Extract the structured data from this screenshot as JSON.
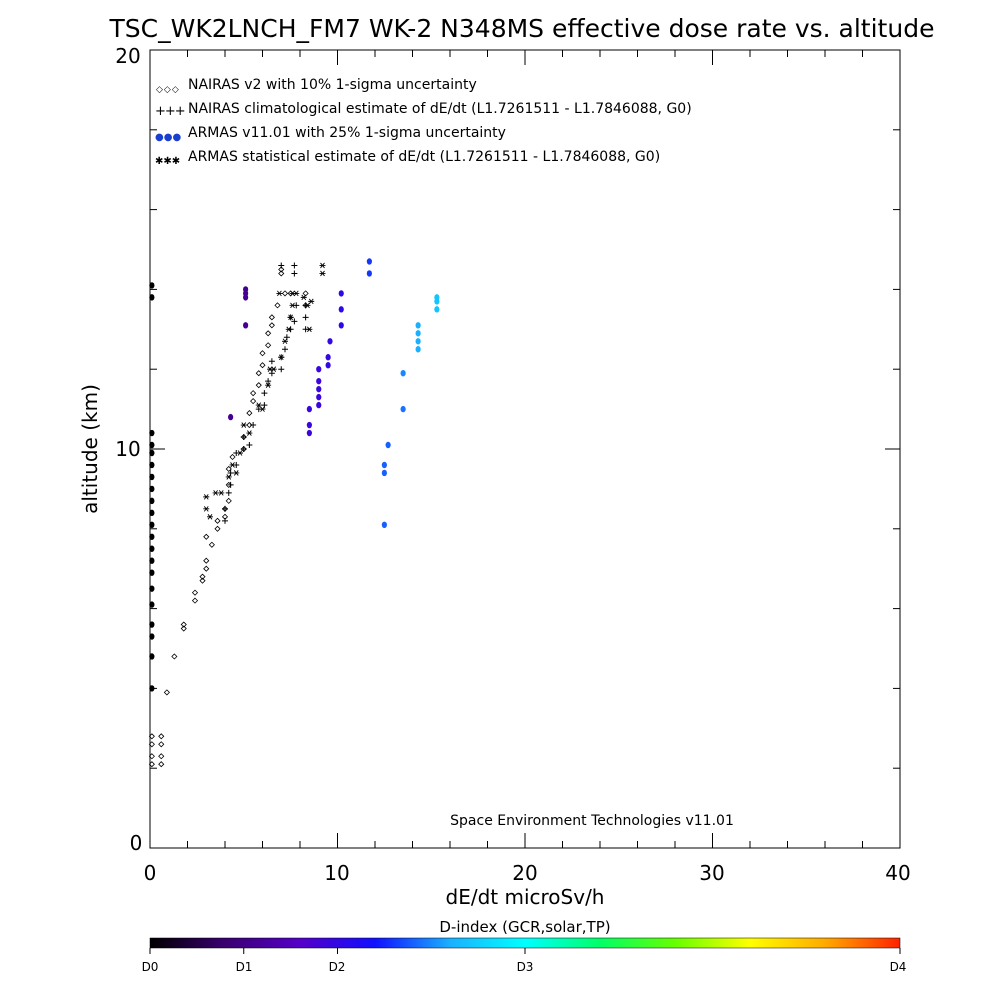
{
  "chart_data": {
    "type": "scatter",
    "title": "TSC_WK2LNCH_FM7 WK-2 N348MS effective dose rate vs. altitude",
    "xlabel": "dE/dt microSv/h",
    "ylabel": "altitude (km)",
    "xlim": [
      0,
      40
    ],
    "ylim": [
      0,
      20
    ],
    "xticks": [
      "0",
      "10",
      "20",
      "30",
      "40"
    ],
    "yticks": [
      "0",
      "10",
      "20"
    ],
    "annotation": "Space Environment Technologies v11.01",
    "legend": {
      "placement": "top-left",
      "entries": [
        {
          "symbol": "◇◇◇",
          "label": "NAIRAS v2 with 10% 1-sigma uncertainty"
        },
        {
          "symbol": "+++",
          "label": "NAIRAS climatological estimate of dE/dt (L1.7261511 - L1.7846088, G0)"
        },
        {
          "symbol": "●●●",
          "label": "ARMAS v11.01 with 25% 1-sigma uncertainty",
          "color": "#1a3fd0"
        },
        {
          "symbol": "✱✱✱",
          "label": "ARMAS statistical estimate of dE/dt (L1.7261511 - L1.7846088, G0)"
        }
      ]
    },
    "series": [
      {
        "name": "NAIRAS v2 with 10% 1-sigma uncertainty",
        "marker": "diamond",
        "points": [
          [
            0.1,
            2.1
          ],
          [
            0.6,
            2.1
          ],
          [
            0.1,
            2.3
          ],
          [
            0.6,
            2.3
          ],
          [
            0.1,
            2.6
          ],
          [
            0.6,
            2.6
          ],
          [
            0.1,
            2.8
          ],
          [
            0.6,
            2.8
          ],
          [
            0.9,
            3.9
          ],
          [
            1.3,
            4.8
          ],
          [
            1.8,
            5.5
          ],
          [
            1.8,
            5.6
          ],
          [
            2.4,
            6.2
          ],
          [
            2.4,
            6.4
          ],
          [
            2.8,
            6.7
          ],
          [
            2.8,
            6.8
          ],
          [
            3.0,
            7.0
          ],
          [
            3.0,
            7.2
          ],
          [
            3.3,
            7.6
          ],
          [
            3.0,
            7.8
          ],
          [
            3.6,
            8.0
          ],
          [
            3.6,
            8.2
          ],
          [
            4.0,
            8.3
          ],
          [
            4.0,
            8.5
          ],
          [
            4.2,
            8.7
          ],
          [
            4.2,
            9.1
          ],
          [
            4.2,
            9.5
          ],
          [
            4.4,
            9.8
          ],
          [
            5.0,
            10.0
          ],
          [
            5.0,
            10.3
          ],
          [
            5.3,
            10.6
          ],
          [
            5.3,
            10.9
          ],
          [
            5.5,
            11.2
          ],
          [
            5.5,
            11.4
          ],
          [
            5.8,
            11.6
          ],
          [
            5.8,
            11.9
          ],
          [
            6.0,
            12.1
          ],
          [
            6.0,
            12.4
          ],
          [
            6.3,
            12.6
          ],
          [
            6.3,
            12.9
          ],
          [
            6.5,
            13.1
          ],
          [
            6.5,
            13.3
          ],
          [
            6.8,
            13.6
          ],
          [
            7.2,
            13.9
          ],
          [
            7.5,
            13.9
          ],
          [
            8.3,
            13.9
          ],
          [
            8.3,
            13.6
          ],
          [
            7.0,
            14.5
          ],
          [
            7.0,
            14.4
          ]
        ]
      },
      {
        "name": "NAIRAS climatological estimate of dE/dt (L1.7261511 - L1.7846088, G0)",
        "marker": "plus",
        "points": [
          [
            4.0,
            8.2
          ],
          [
            4.0,
            8.5
          ],
          [
            4.2,
            8.9
          ],
          [
            4.3,
            9.1
          ],
          [
            4.3,
            9.4
          ],
          [
            4.6,
            9.6
          ],
          [
            4.6,
            9.9
          ],
          [
            5.0,
            10.0
          ],
          [
            5.0,
            10.3
          ],
          [
            5.3,
            10.1
          ],
          [
            5.5,
            10.6
          ],
          [
            5.8,
            11.0
          ],
          [
            6.1,
            11.1
          ],
          [
            6.1,
            11.4
          ],
          [
            6.3,
            11.7
          ],
          [
            6.5,
            11.9
          ],
          [
            6.5,
            12.2
          ],
          [
            7.0,
            12.0
          ],
          [
            7.0,
            12.3
          ],
          [
            7.2,
            12.5
          ],
          [
            7.3,
            12.8
          ],
          [
            7.5,
            13.0
          ],
          [
            7.5,
            13.3
          ],
          [
            7.7,
            13.2
          ],
          [
            7.8,
            13.6
          ],
          [
            8.3,
            13.0
          ],
          [
            8.3,
            13.3
          ],
          [
            8.3,
            13.6
          ],
          [
            7.0,
            14.6
          ],
          [
            7.7,
            14.6
          ],
          [
            7.7,
            14.4
          ]
        ]
      },
      {
        "name": "ARMAS statistical estimate of dE/dt (L1.7261511 - L1.7846088, G0)",
        "marker": "asterisk",
        "points": [
          [
            3.0,
            8.5
          ],
          [
            3.0,
            8.8
          ],
          [
            3.2,
            8.3
          ],
          [
            3.5,
            8.9
          ],
          [
            3.8,
            8.9
          ],
          [
            4.2,
            9.3
          ],
          [
            4.4,
            9.6
          ],
          [
            4.6,
            9.4
          ],
          [
            4.8,
            9.9
          ],
          [
            5.3,
            10.4
          ],
          [
            5.0,
            10.6
          ],
          [
            5.8,
            11.1
          ],
          [
            6.0,
            11.0
          ],
          [
            6.3,
            11.6
          ],
          [
            6.4,
            12.0
          ],
          [
            6.6,
            12.0
          ],
          [
            7.0,
            12.3
          ],
          [
            7.2,
            12.7
          ],
          [
            7.4,
            13.0
          ],
          [
            7.5,
            13.3
          ],
          [
            7.6,
            13.6
          ],
          [
            7.8,
            13.9
          ],
          [
            8.2,
            13.8
          ],
          [
            8.4,
            13.6
          ],
          [
            8.6,
            13.7
          ],
          [
            8.5,
            13.0
          ],
          [
            6.9,
            13.9
          ],
          [
            7.6,
            13.9
          ],
          [
            9.2,
            14.6
          ],
          [
            9.2,
            14.4
          ]
        ]
      },
      {
        "name": "ARMAS v11.01 with 25% 1-sigma uncertainty",
        "marker": "filled-circle",
        "points": [
          {
            "x": 0.1,
            "y": 4.0,
            "d": 0
          },
          {
            "x": 0.1,
            "y": 4.8,
            "d": 0
          },
          {
            "x": 0.1,
            "y": 5.3,
            "d": 0
          },
          {
            "x": 0.1,
            "y": 5.6,
            "d": 0
          },
          {
            "x": 0.1,
            "y": 6.1,
            "d": 0
          },
          {
            "x": 0.1,
            "y": 6.5,
            "d": 0
          },
          {
            "x": 0.1,
            "y": 6.9,
            "d": 0
          },
          {
            "x": 0.1,
            "y": 7.2,
            "d": 0
          },
          {
            "x": 0.1,
            "y": 7.5,
            "d": 0
          },
          {
            "x": 0.1,
            "y": 7.8,
            "d": 0
          },
          {
            "x": 0.1,
            "y": 8.1,
            "d": 0
          },
          {
            "x": 0.1,
            "y": 8.4,
            "d": 0
          },
          {
            "x": 0.1,
            "y": 8.7,
            "d": 0
          },
          {
            "x": 0.1,
            "y": 9.0,
            "d": 0
          },
          {
            "x": 0.1,
            "y": 9.3,
            "d": 0
          },
          {
            "x": 0.1,
            "y": 9.6,
            "d": 0
          },
          {
            "x": 0.1,
            "y": 9.9,
            "d": 0
          },
          {
            "x": 0.1,
            "y": 10.1,
            "d": 0
          },
          {
            "x": 0.1,
            "y": 10.4,
            "d": 0
          },
          {
            "x": 0.1,
            "y": 13.8,
            "d": 0
          },
          {
            "x": 0.1,
            "y": 14.1,
            "d": 0
          },
          {
            "x": 4.3,
            "y": 10.8,
            "d": 1.1
          },
          {
            "x": 5.1,
            "y": 13.1,
            "d": 1.1
          },
          {
            "x": 5.1,
            "y": 13.8,
            "d": 1.1
          },
          {
            "x": 5.1,
            "y": 13.9,
            "d": 1.1
          },
          {
            "x": 5.1,
            "y": 14.0,
            "d": 1.1
          },
          {
            "x": 8.5,
            "y": 10.4,
            "d": 1.9
          },
          {
            "x": 8.5,
            "y": 10.6,
            "d": 1.9
          },
          {
            "x": 8.5,
            "y": 11.0,
            "d": 1.9
          },
          {
            "x": 9.0,
            "y": 11.1,
            "d": 1.9
          },
          {
            "x": 9.0,
            "y": 11.3,
            "d": 1.9
          },
          {
            "x": 9.0,
            "y": 11.5,
            "d": 1.9
          },
          {
            "x": 9.0,
            "y": 11.7,
            "d": 1.9
          },
          {
            "x": 9.0,
            "y": 12.0,
            "d": 1.9
          },
          {
            "x": 9.5,
            "y": 12.1,
            "d": 2.0
          },
          {
            "x": 9.5,
            "y": 12.3,
            "d": 2.0
          },
          {
            "x": 9.6,
            "y": 12.7,
            "d": 2.0
          },
          {
            "x": 10.2,
            "y": 13.1,
            "d": 2.05
          },
          {
            "x": 10.2,
            "y": 13.5,
            "d": 2.05
          },
          {
            "x": 10.2,
            "y": 13.9,
            "d": 2.05
          },
          {
            "x": 11.7,
            "y": 14.4,
            "d": 2.3
          },
          {
            "x": 11.7,
            "y": 14.7,
            "d": 2.3
          },
          {
            "x": 12.5,
            "y": 8.1,
            "d": 2.4
          },
          {
            "x": 12.5,
            "y": 9.4,
            "d": 2.4
          },
          {
            "x": 12.5,
            "y": 9.6,
            "d": 2.4
          },
          {
            "x": 12.7,
            "y": 10.1,
            "d": 2.4
          },
          {
            "x": 13.5,
            "y": 11.0,
            "d": 2.45
          },
          {
            "x": 13.5,
            "y": 11.9,
            "d": 2.5
          },
          {
            "x": 14.3,
            "y": 12.5,
            "d": 2.6
          },
          {
            "x": 14.3,
            "y": 12.7,
            "d": 2.6
          },
          {
            "x": 14.3,
            "y": 12.9,
            "d": 2.6
          },
          {
            "x": 14.3,
            "y": 13.1,
            "d": 2.6
          },
          {
            "x": 15.3,
            "y": 13.5,
            "d": 2.7
          },
          {
            "x": 15.3,
            "y": 13.7,
            "d": 2.7
          },
          {
            "x": 15.3,
            "y": 13.8,
            "d": 2.7
          }
        ]
      }
    ],
    "colorbar": {
      "title": "D-index (GCR,solar,TP)",
      "labels": [
        {
          "text": "D0",
          "value": 0
        },
        {
          "text": "D1",
          "value": 1
        },
        {
          "text": "D2",
          "value": 2
        },
        {
          "text": "D3",
          "value": 3
        },
        {
          "text": "D4",
          "value": 4
        }
      ],
      "label_positions": [
        0,
        0.125,
        0.25,
        0.5,
        1.0
      ],
      "stops": [
        "#000000",
        "#3a0070",
        "#5500c8",
        "#1010ff",
        "#1ab0ff",
        "#00ffff",
        "#00ff66",
        "#66ff00",
        "#ffff00",
        "#ffaa00",
        "#ff2200"
      ]
    }
  }
}
